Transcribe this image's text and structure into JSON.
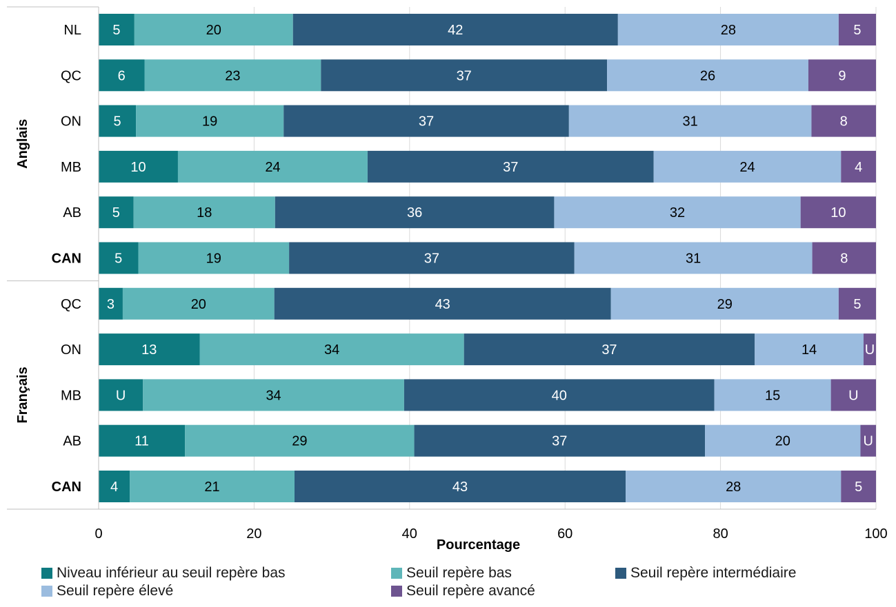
{
  "chart_data": {
    "type": "bar",
    "orientation": "horizontal",
    "stacked": true,
    "xlabel": "Pourcentage",
    "xlim": [
      0,
      100
    ],
    "xticks": [
      0,
      20,
      40,
      60,
      80,
      100
    ],
    "grid": true,
    "legend_position": "bottom",
    "groups": [
      {
        "label": "Anglais",
        "rows": [
          {
            "label": "NL",
            "bold": false,
            "values": [
              5,
              20,
              42,
              28,
              5
            ],
            "widths": [
              4.6,
              20.4,
              41.8,
              28.4,
              4.8
            ],
            "display": [
              "5",
              "20",
              "42",
              "28",
              "5"
            ]
          },
          {
            "label": "QC",
            "bold": false,
            "values": [
              6,
              23,
              37,
              26,
              9
            ],
            "widths": [
              5.9,
              22.7,
              36.8,
              25.9,
              8.7
            ],
            "display": [
              "6",
              "23",
              "37",
              "26",
              "9"
            ]
          },
          {
            "label": "ON",
            "bold": false,
            "values": [
              5,
              19,
              37,
              31,
              8
            ],
            "widths": [
              4.8,
              19.0,
              36.7,
              31.2,
              8.3
            ],
            "display": [
              "5",
              "19",
              "37",
              "31",
              "8"
            ]
          },
          {
            "label": "MB",
            "bold": false,
            "values": [
              10,
              24,
              37,
              24,
              4
            ],
            "widths": [
              10.2,
              24.4,
              36.8,
              24.1,
              4.5
            ],
            "display": [
              "10",
              "24",
              "37",
              "24",
              "4"
            ]
          },
          {
            "label": "AB",
            "bold": false,
            "values": [
              5,
              18,
              36,
              32,
              10
            ],
            "widths": [
              4.5,
              18.2,
              35.9,
              31.7,
              9.7
            ],
            "display": [
              "5",
              "18",
              "36",
              "32",
              "10"
            ]
          },
          {
            "label": "CAN",
            "bold": true,
            "values": [
              5,
              19,
              37,
              31,
              8
            ],
            "widths": [
              5.1,
              19.4,
              36.7,
              30.6,
              8.2
            ],
            "display": [
              "5",
              "19",
              "37",
              "31",
              "8"
            ]
          }
        ]
      },
      {
        "label": "Français",
        "rows": [
          {
            "label": "QC",
            "bold": false,
            "values": [
              3,
              20,
              43,
              29,
              5
            ],
            "widths": [
              3.1,
              19.5,
              43.3,
              29.3,
              4.8
            ],
            "display": [
              "3",
              "20",
              "43",
              "29",
              "5"
            ]
          },
          {
            "label": "ON",
            "bold": false,
            "values": [
              13,
              34,
              37,
              14,
              null
            ],
            "widths": [
              13.0,
              34.0,
              37.4,
              14.0,
              1.6
            ],
            "display": [
              "13",
              "34",
              "37",
              "14",
              "U"
            ]
          },
          {
            "label": "MB",
            "bold": false,
            "values": [
              null,
              34,
              40,
              15,
              null
            ],
            "widths": [
              5.7,
              33.6,
              39.9,
              15.0,
              5.8
            ],
            "display": [
              "U",
              "34",
              "40",
              "15",
              "U"
            ]
          },
          {
            "label": "AB",
            "bold": false,
            "values": [
              11,
              29,
              37,
              20,
              null
            ],
            "widths": [
              11.1,
              29.5,
              37.4,
              20.0,
              2.0
            ],
            "display": [
              "11",
              "29",
              "37",
              "20",
              "U"
            ]
          },
          {
            "label": "CAN",
            "bold": true,
            "values": [
              4,
              21,
              43,
              28,
              5
            ],
            "widths": [
              4.0,
              21.2,
              42.6,
              27.7,
              4.5
            ],
            "display": [
              "4",
              "21",
              "43",
              "28",
              "5"
            ]
          }
        ]
      }
    ],
    "series": [
      {
        "name": "Niveau inférieur au seuil repère bas",
        "color": "#0e7a80",
        "label_color": "#ffffff"
      },
      {
        "name": "Seuil repère bas",
        "color": "#5fb6b9",
        "label_color": "#000000"
      },
      {
        "name": "Seuil repère intermédiaire",
        "color": "#2d5a7d",
        "label_color": "#ffffff"
      },
      {
        "name": "Seuil repère élevé",
        "color": "#9bbcdf",
        "label_color": "#000000"
      },
      {
        "name": "Seuil repère avancé",
        "color": "#6e5490",
        "label_color": "#ffffff"
      }
    ]
  }
}
